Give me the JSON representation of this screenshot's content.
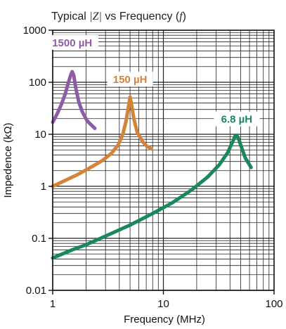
{
  "chart_data": {
    "type": "line",
    "title_prefix": "Typical ",
    "title_symbol": "|Z|",
    "title_middle": " vs Frequency (",
    "title_var": "f",
    "title_suffix": ")",
    "xlabel": "Frequency (MHz)",
    "ylabel": "Impedence (kΩ)",
    "x_scale": "log",
    "y_scale": "log",
    "xlim": [
      1,
      100
    ],
    "ylim": [
      0.01,
      1000
    ],
    "x_ticks": [
      {
        "value": 1,
        "label": "1"
      },
      {
        "value": 10,
        "label": "10"
      },
      {
        "value": 100,
        "label": "100"
      }
    ],
    "y_ticks": [
      {
        "value": 0.01,
        "label": "0.01"
      },
      {
        "value": 0.1,
        "label": "0.1"
      },
      {
        "value": 1,
        "label": "1"
      },
      {
        "value": 10,
        "label": "10"
      },
      {
        "value": 100,
        "label": "100"
      },
      {
        "value": 1000,
        "label": "1000"
      }
    ],
    "grid": true,
    "series": [
      {
        "name": "1500 µH",
        "color": "#8E5BA6",
        "x": [
          1.0,
          1.1,
          1.2,
          1.3,
          1.38,
          1.45,
          1.5,
          1.55,
          1.62,
          1.72,
          1.85,
          2.05,
          2.4
        ],
        "y": [
          17,
          25,
          38,
          60,
          95,
          135,
          160,
          135,
          75,
          42,
          27,
          18,
          13
        ]
      },
      {
        "name": "150 µH",
        "color": "#D2853A",
        "x": [
          1.0,
          1.3,
          1.7,
          2.2,
          2.8,
          3.4,
          3.9,
          4.3,
          4.6,
          4.85,
          5.0,
          5.15,
          5.4,
          5.8,
          6.4,
          7.0,
          7.8
        ],
        "y": [
          1.0,
          1.3,
          1.7,
          2.3,
          3.1,
          4.3,
          6.2,
          10,
          18,
          35,
          52,
          38,
          20,
          11,
          7.5,
          6.0,
          5.2
        ]
      },
      {
        "name": "6.8 µH",
        "color": "#19885A",
        "x": [
          1.0,
          1.5,
          2,
          3,
          5,
          8,
          12,
          18,
          25,
          32,
          38,
          42,
          44.5,
          46,
          48,
          51,
          55,
          62
        ],
        "y": [
          0.042,
          0.06,
          0.075,
          0.11,
          0.18,
          0.3,
          0.48,
          0.85,
          1.5,
          2.6,
          4.4,
          7.0,
          9.2,
          9.5,
          8.0,
          5.5,
          3.5,
          2.3
        ]
      }
    ]
  }
}
